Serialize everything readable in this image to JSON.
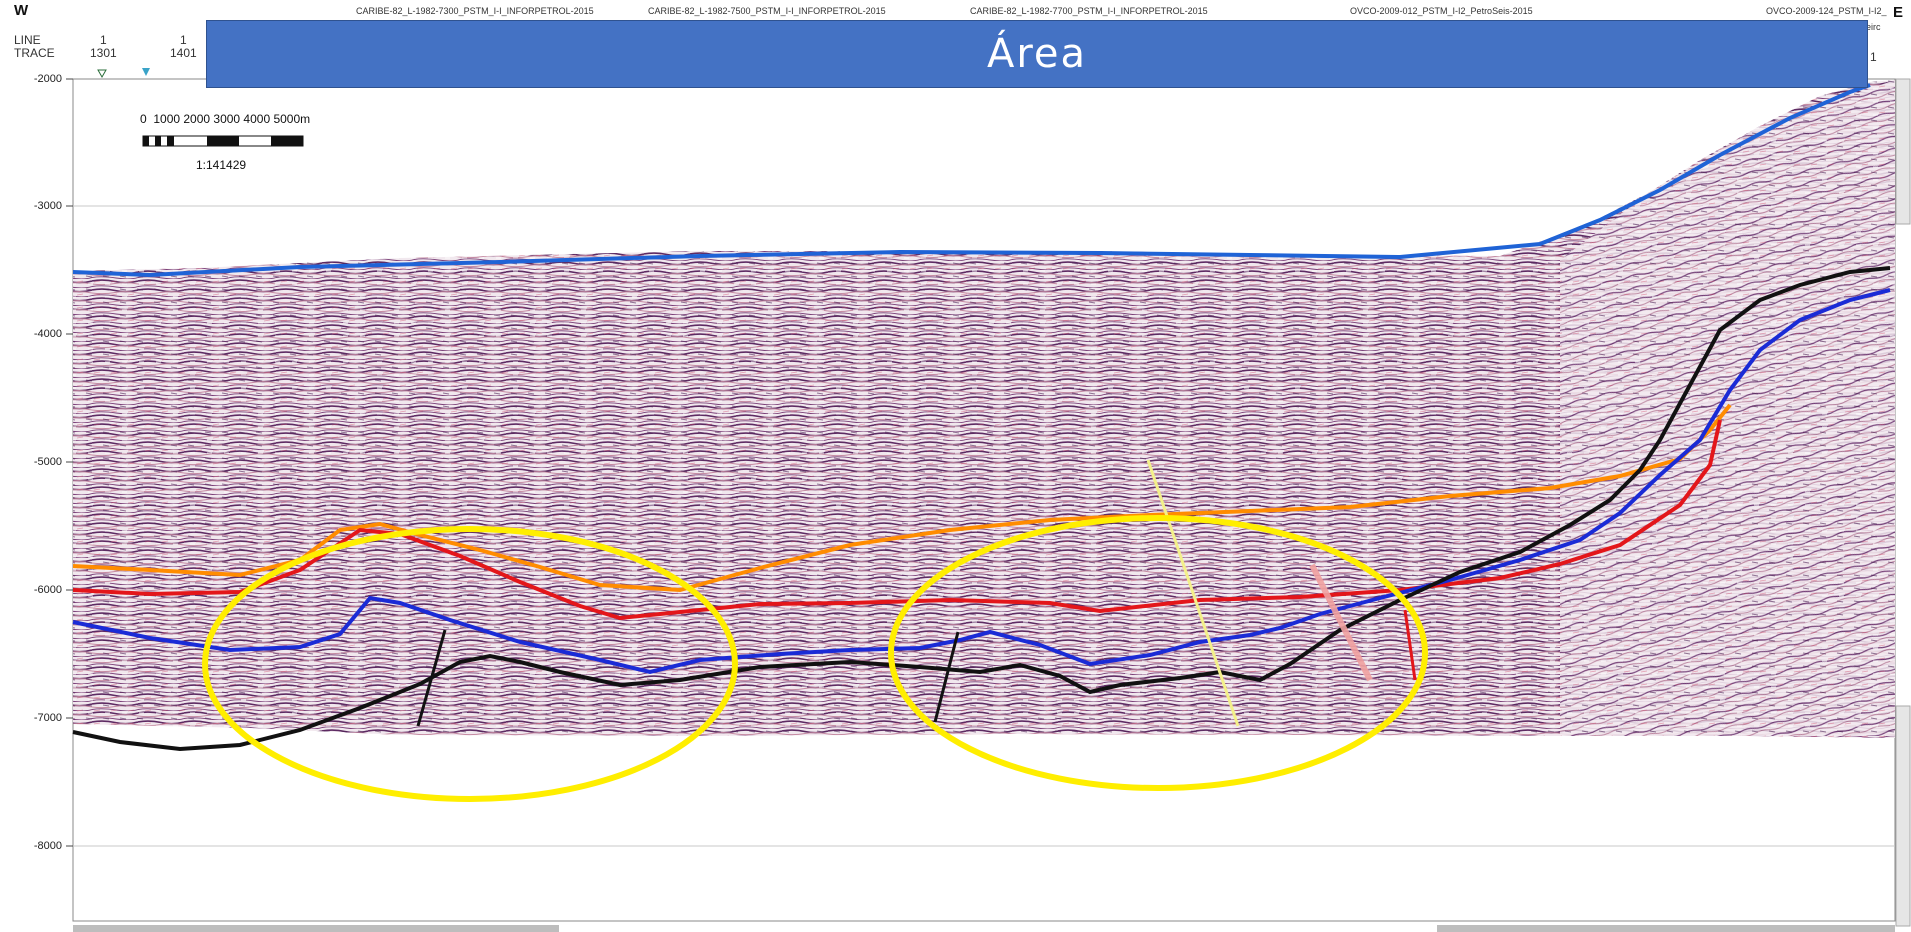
{
  "compass": {
    "west": "W",
    "east": "E"
  },
  "header": {
    "line_label": "LINE",
    "trace_label": "TRACE",
    "line_value_1": "1",
    "trace_value_1": "1301",
    "line_value_2": "1",
    "trace_value_2": "1401",
    "right_trace": "1",
    "right_extra": "eirc",
    "line_names": [
      "CARIBE-82_L-1982-7300_PSTM_I-I_INFORPETROL-2015",
      "CARIBE-82_L-1982-7500_PSTM_I-I_INFORPETROL-2015",
      "CARIBE-82_L-1982-7700_PSTM_I-I_INFORPETROL-2015",
      "OVCO-2009-012_PSTM_I-I2_PetroSeis-2015",
      "OVCO-2009-124_PSTM_I-I2_"
    ]
  },
  "banner": {
    "title": "Área"
  },
  "scale_bar": {
    "labels": "0  1000 2000 3000 4000 5000m",
    "ratio": "1:141429"
  },
  "y_axis": {
    "ticks": [
      "-2000",
      "-3000",
      "-4000",
      "-5000",
      "-6000",
      "-7000",
      "-8000"
    ]
  },
  "colors": {
    "banner": "#4472c4",
    "seafloor_horizon": "#1f63d6",
    "orange_horizon": "#ff8c00",
    "red_horizon": "#e3161a",
    "blue_horizon": "#1a2bd6",
    "black_horizon": "#111111",
    "highlight_ellipse": "#ffee00",
    "fault_yellow": "#f3f08a",
    "fault_pink": "#f0a0a0"
  }
}
